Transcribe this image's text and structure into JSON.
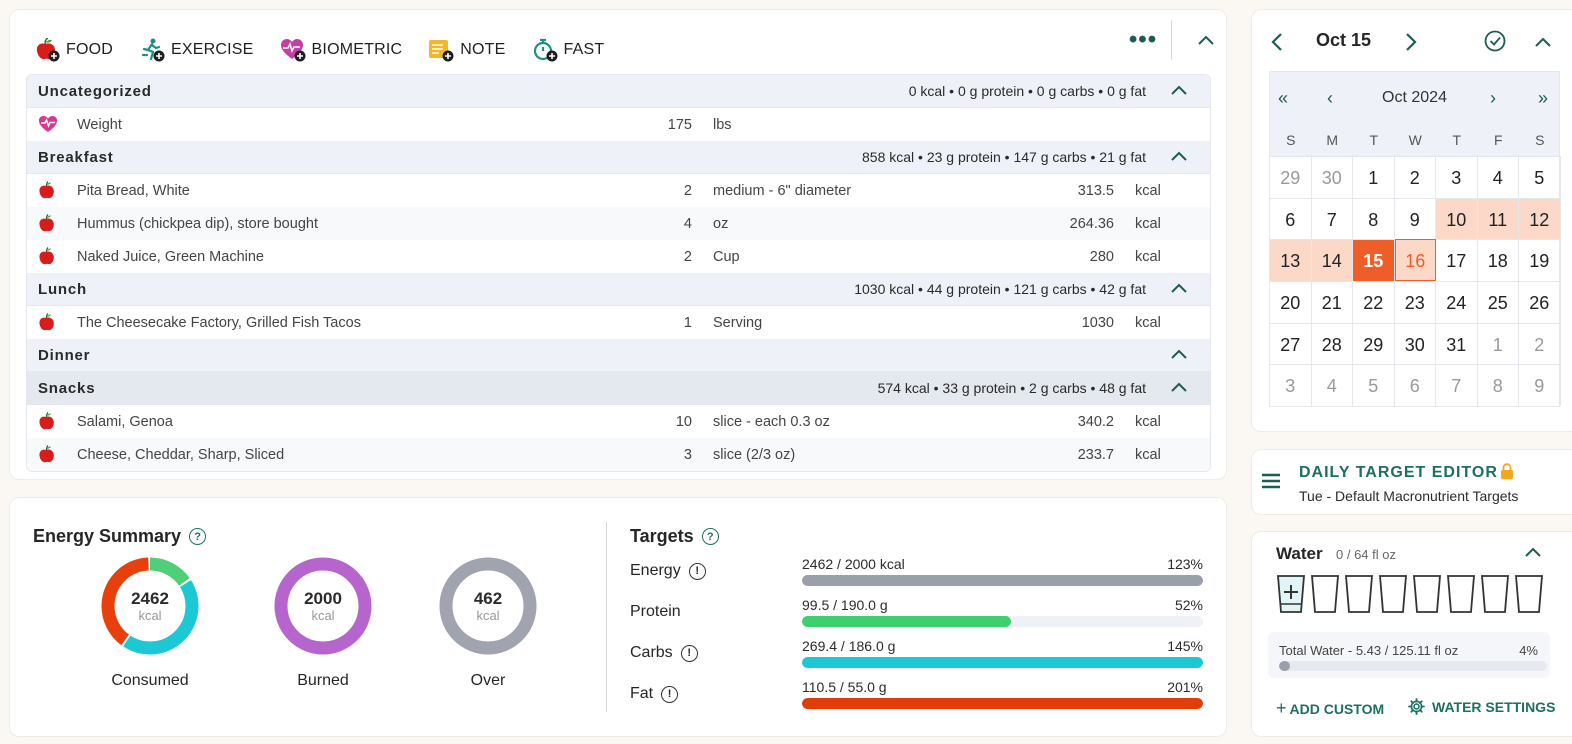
{
  "toolbar": {
    "food": "FOOD",
    "exercise": "EXERCISE",
    "biometric": "BIOMETRIC",
    "note": "NOTE",
    "fast": "FAST",
    "more": "•••"
  },
  "colors": {
    "accent": "#1d6f62",
    "orange": "#ef5d28",
    "highlight": "#fbd8c7",
    "energy_bar": "#9aa0ab",
    "protein_bar": "#3ecf6e",
    "carbs_bar": "#1cc8d4",
    "fat_bar": "#e23c08",
    "burned": "#b565cc"
  },
  "diary": {
    "groups": [
      {
        "name": "Uncategorized",
        "summary": "0 kcal • 0 g protein • 0 g carbs • 0 g fat",
        "rows": [
          {
            "icon": "heart-pulse-icon",
            "name": "Weight",
            "qty": "175",
            "unit": "lbs",
            "cal": "",
            "kcal": ""
          }
        ]
      },
      {
        "name": "Breakfast",
        "summary": "858 kcal • 23 g protein • 147 g carbs • 21 g fat",
        "rows": [
          {
            "icon": "apple-icon",
            "name": "Pita Bread, White",
            "qty": "2",
            "unit": "medium - 6\" diameter",
            "cal": "313.5",
            "kcal": "kcal"
          },
          {
            "icon": "apple-icon",
            "name": "Hummus (chickpea dip), store bought",
            "qty": "4",
            "unit": "oz",
            "cal": "264.36",
            "kcal": "kcal"
          },
          {
            "icon": "apple-icon",
            "name": "Naked Juice, Green Machine",
            "qty": "2",
            "unit": "Cup",
            "cal": "280",
            "kcal": "kcal"
          }
        ]
      },
      {
        "name": "Lunch",
        "summary": "1030 kcal • 44 g protein • 121 g carbs • 42 g fat",
        "rows": [
          {
            "icon": "apple-icon",
            "name": "The Cheesecake Factory, Grilled Fish Tacos",
            "qty": "1",
            "unit": "Serving",
            "cal": "1030",
            "kcal": "kcal"
          }
        ]
      },
      {
        "name": "Dinner",
        "summary": "",
        "rows": []
      },
      {
        "name": "Snacks",
        "summary": "574 kcal • 33 g protein • 2 g carbs • 48 g fat",
        "rows": [
          {
            "icon": "apple-icon",
            "name": "Salami, Genoa",
            "qty": "10",
            "unit": "slice - each 0.3 oz",
            "cal": "340.2",
            "kcal": "kcal"
          },
          {
            "icon": "apple-icon",
            "name": "Cheese, Cheddar, Sharp, Sliced",
            "qty": "3",
            "unit": "slice (2/3 oz)",
            "cal": "233.7",
            "kcal": "kcal"
          }
        ]
      }
    ]
  },
  "energy": {
    "title": "Energy Summary",
    "consumed": {
      "value": "2462",
      "unit": "kcal",
      "label": "Consumed"
    },
    "burned": {
      "value": "2000",
      "unit": "kcal",
      "label": "Burned"
    },
    "over": {
      "value": "462",
      "unit": "kcal",
      "label": "Over"
    },
    "consumed_split": {
      "protein": 0.16,
      "carbs": 0.44,
      "fat": 0.4
    }
  },
  "targets": {
    "title": "Targets",
    "items": [
      {
        "label": "Energy",
        "text": "2462 / 2000 kcal",
        "pct": "123%",
        "fill": 1.0,
        "color": "#9aa0ab",
        "info": true
      },
      {
        "label": "Protein",
        "text": "99.5 / 190.0 g",
        "pct": "52%",
        "fill": 0.52,
        "color": "#3ecf6e",
        "info": false
      },
      {
        "label": "Carbs",
        "text": "269.4 / 186.0 g",
        "pct": "145%",
        "fill": 1.0,
        "color": "#1cc8d4",
        "info": true
      },
      {
        "label": "Fat",
        "text": "110.5 / 55.0 g",
        "pct": "201%",
        "fill": 1.0,
        "color": "#e23c08",
        "info": true
      }
    ]
  },
  "calendar": {
    "date_title": "Oct 15",
    "month_title": "Oct 2024",
    "weekdays": [
      "S",
      "M",
      "T",
      "W",
      "T",
      "F",
      "S"
    ],
    "days": [
      {
        "d": "29",
        "s": "o"
      },
      {
        "d": "30",
        "s": "o"
      },
      {
        "d": "1",
        "s": ""
      },
      {
        "d": "2",
        "s": ""
      },
      {
        "d": "3",
        "s": ""
      },
      {
        "d": "4",
        "s": ""
      },
      {
        "d": "5",
        "s": ""
      },
      {
        "d": "6",
        "s": ""
      },
      {
        "d": "7",
        "s": ""
      },
      {
        "d": "8",
        "s": ""
      },
      {
        "d": "9",
        "s": ""
      },
      {
        "d": "10",
        "s": "h"
      },
      {
        "d": "11",
        "s": "h"
      },
      {
        "d": "12",
        "s": "h"
      },
      {
        "d": "13",
        "s": "h"
      },
      {
        "d": "14",
        "s": "h"
      },
      {
        "d": "15",
        "s": "sel"
      },
      {
        "d": "16",
        "s": "tod"
      },
      {
        "d": "17",
        "s": ""
      },
      {
        "d": "18",
        "s": ""
      },
      {
        "d": "19",
        "s": ""
      },
      {
        "d": "20",
        "s": ""
      },
      {
        "d": "21",
        "s": ""
      },
      {
        "d": "22",
        "s": ""
      },
      {
        "d": "23",
        "s": ""
      },
      {
        "d": "24",
        "s": ""
      },
      {
        "d": "25",
        "s": ""
      },
      {
        "d": "26",
        "s": ""
      },
      {
        "d": "27",
        "s": ""
      },
      {
        "d": "28",
        "s": ""
      },
      {
        "d": "29",
        "s": ""
      },
      {
        "d": "30",
        "s": ""
      },
      {
        "d": "31",
        "s": ""
      },
      {
        "d": "1",
        "s": "o"
      },
      {
        "d": "2",
        "s": "o"
      },
      {
        "d": "3",
        "s": "o"
      },
      {
        "d": "4",
        "s": "o"
      },
      {
        "d": "5",
        "s": "o"
      },
      {
        "d": "6",
        "s": "o"
      },
      {
        "d": "7",
        "s": "o"
      },
      {
        "d": "8",
        "s": "o"
      },
      {
        "d": "9",
        "s": "o"
      }
    ]
  },
  "target_editor": {
    "title": "DAILY TARGET EDITOR",
    "subtitle": "Tue - Default Macronutrient Targets"
  },
  "water": {
    "title": "Water",
    "status": "0 / 64 fl oz",
    "cup_count": 8,
    "total_text": "Total Water - 5.43 / 125.11 fl oz",
    "total_pct": "4%",
    "total_fill": 0.04,
    "add_custom": "ADD CUSTOM",
    "settings": "WATER SETTINGS"
  }
}
